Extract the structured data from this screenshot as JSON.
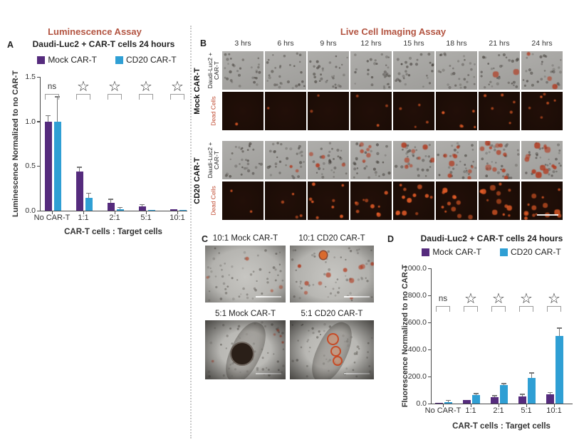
{
  "section_titles": {
    "left": "Luminescence Assay",
    "right": "Live Cell Imaging Assay"
  },
  "colors": {
    "mock": "#552b7d",
    "cd20": "#2f9fd4",
    "section_title": "#b35441",
    "dead_cells_label": "#c04a30"
  },
  "panel_a": {
    "label": "A",
    "title": "Daudi-Luc2 + CAR-T cells 24 hours",
    "legend": [
      "Mock CAR-T",
      "CD20 CAR-T"
    ]
  },
  "panel_b": {
    "label": "B",
    "timepoints": [
      "3 hrs",
      "6 hrs",
      "9 hrs",
      "12 hrs",
      "15 hrs",
      "18 hrs",
      "21 hrs",
      "24 hrs"
    ],
    "groups": [
      {
        "name": "Mock CAR-T",
        "row_labels": [
          "Daudi-Luc2 + CAR-T",
          "Dead Cells"
        ]
      },
      {
        "name": "CD20 CAR-T",
        "row_labels": [
          "Daudi-Luc2 + CAR-T",
          "Dead Cells"
        ]
      }
    ]
  },
  "panel_c": {
    "label": "C",
    "image_titles": [
      "10:1 Mock CAR-T",
      "10:1 CD20 CAR-T",
      "5:1 Mock CAR-T",
      "5:1 CD20 CAR-T"
    ]
  },
  "panel_d": {
    "label": "D",
    "title": "Daudi-Luc2 + CAR-T cells 24 hours",
    "legend": [
      "Mock CAR-T",
      "CD20 CAR-T"
    ]
  },
  "chart_data": [
    {
      "panel": "A",
      "type": "bar",
      "title": "Daudi-Luc2 + CAR-T cells 24 hours",
      "categories": [
        "No CAR-T",
        "1:1",
        "2:1",
        "5:1",
        "10:1"
      ],
      "series": [
        {
          "name": "Mock CAR-T",
          "color": "#552b7d",
          "values": [
            1.0,
            0.44,
            0.09,
            0.05,
            0.02
          ],
          "errors": [
            0.06,
            0.04,
            0.03,
            0.012,
            0.006
          ]
        },
        {
          "name": "CD20 CAR-T",
          "color": "#2f9fd4",
          "values": [
            1.0,
            0.14,
            0.02,
            0.008,
            0.005
          ],
          "errors": [
            0.27,
            0.05,
            0.012,
            0.005,
            0.003
          ]
        }
      ],
      "significance": [
        "ns",
        "*",
        "*",
        "*",
        "*"
      ],
      "xlabel": "CAR-T cells : Target cells",
      "ylabel": "Luminescence Normalized to no CAR-T",
      "ylim": [
        0,
        1.5
      ],
      "yticks": [
        "1.5",
        "1.0",
        "0.5",
        "0.0"
      ],
      "grid": false,
      "legend_position": "top"
    },
    {
      "panel": "D",
      "type": "bar",
      "title": "Daudi-Luc2 + CAR-T cells 24 hours",
      "categories": [
        "No CAR-T",
        "1:1",
        "2:1",
        "5:1",
        "10:1"
      ],
      "series": [
        {
          "name": "Mock CAR-T",
          "color": "#552b7d",
          "values": [
            3,
            25,
            45,
            55,
            70
          ],
          "errors": [
            3,
            5,
            8,
            10,
            8
          ]
        },
        {
          "name": "CD20 CAR-T",
          "color": "#2f9fd4",
          "values": [
            8,
            65,
            135,
            190,
            500
          ],
          "errors": [
            12,
            6,
            8,
            32,
            55
          ]
        }
      ],
      "significance": [
        "ns",
        "*",
        "*",
        "*",
        "*"
      ],
      "xlabel": "CAR-T cells : Target cells",
      "ylabel": "Fluorescence Normalized to no CAR-T",
      "ylim": [
        0,
        1000
      ],
      "yticks": [
        "1000.0",
        "800.0",
        "600.0",
        "400.0",
        "200.0",
        "0.0"
      ],
      "grid": false,
      "legend_position": "top"
    }
  ]
}
